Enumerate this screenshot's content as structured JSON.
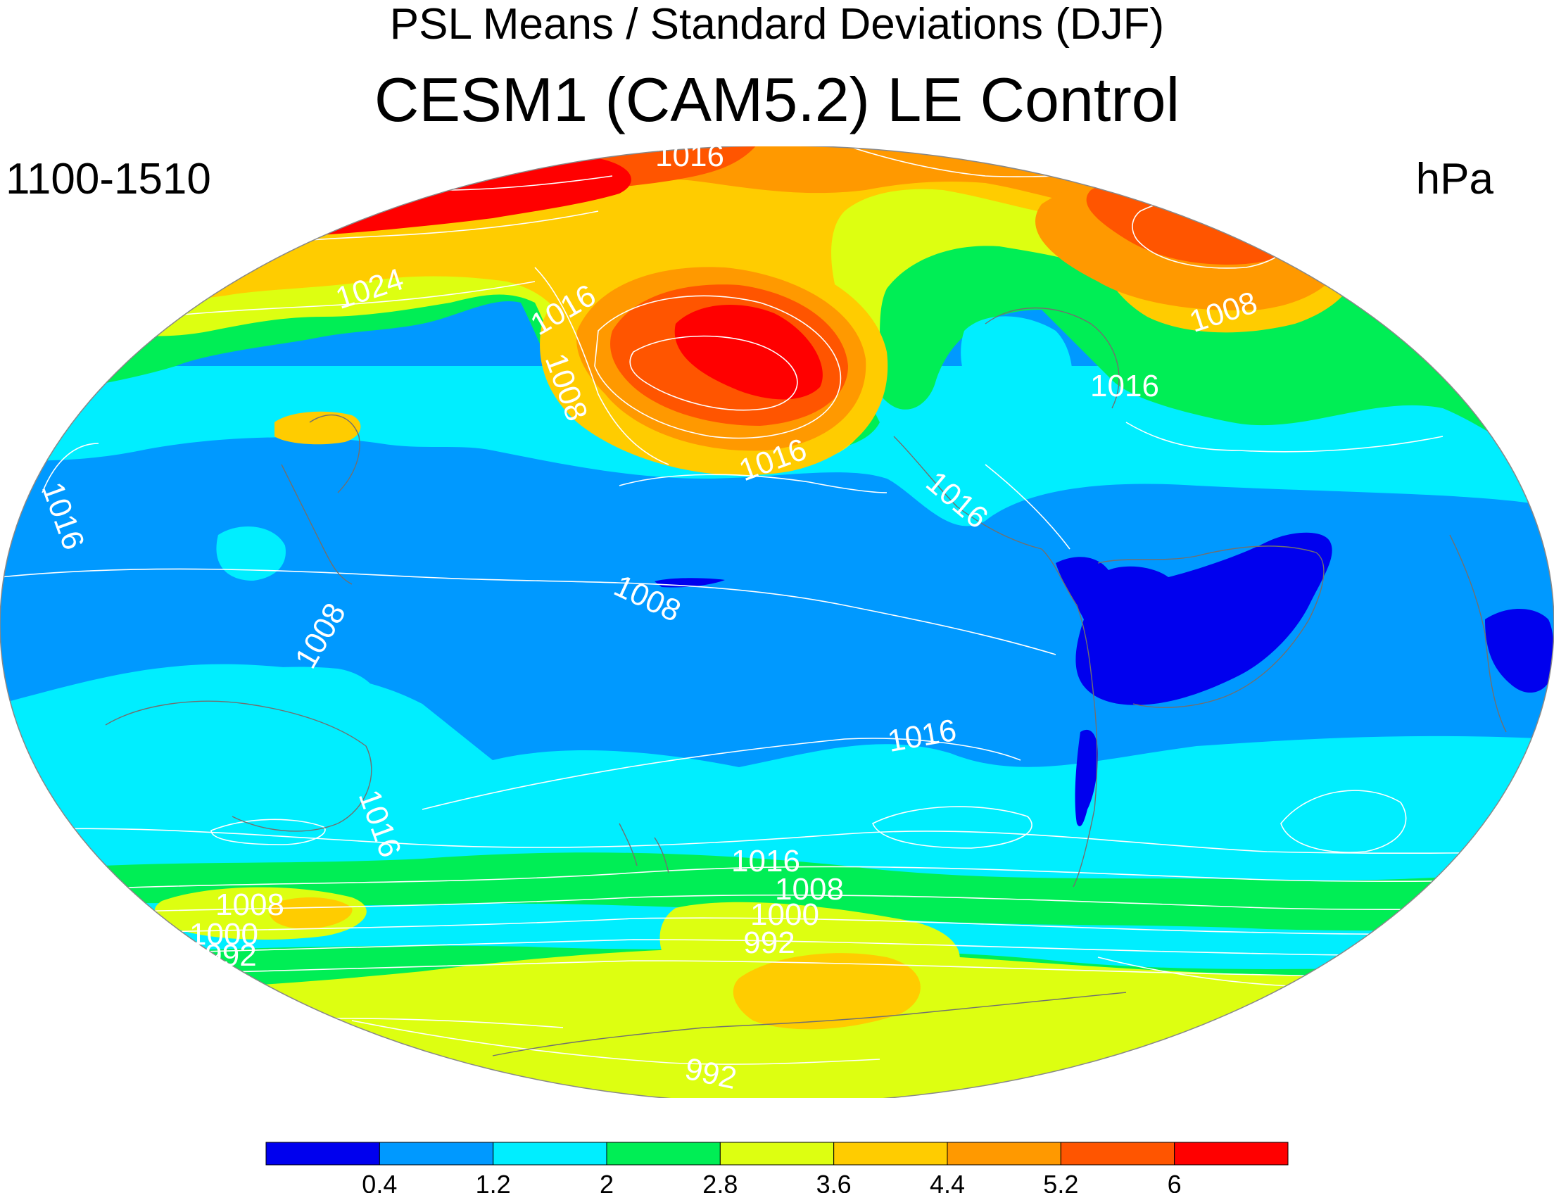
{
  "title": "PSL Means / Standard Deviations (DJF)",
  "subtitle": "CESM1 (CAM5.2) LE Control",
  "period": "1100-1510",
  "units": "hPa",
  "colors": {
    "c1": "#0000ee",
    "c2": "#0099ff",
    "c3": "#00eeff",
    "c4": "#00ee55",
    "c5": "#ddff11",
    "c6": "#ffcc00",
    "c7": "#ff9900",
    "c8": "#ff5500",
    "c9": "#ff0000"
  },
  "colorbar": {
    "labels": [
      "0.4",
      "1.2",
      "2",
      "2.8",
      "3.6",
      "4.4",
      "5.2",
      "6"
    ],
    "colors": [
      "#0000ee",
      "#0099ff",
      "#00eeff",
      "#00ee55",
      "#ddff11",
      "#ffcc00",
      "#ff9900",
      "#ff5500",
      "#ff0000"
    ]
  },
  "contour_labels": [
    "1016",
    "1024",
    "1016",
    "1008",
    "1016",
    "1016",
    "1008",
    "1016",
    "1016",
    "1008",
    "1008",
    "1016",
    "1016",
    "1016",
    "1008",
    "1000",
    "992",
    "1008",
    "1000",
    "992",
    "992"
  ]
}
